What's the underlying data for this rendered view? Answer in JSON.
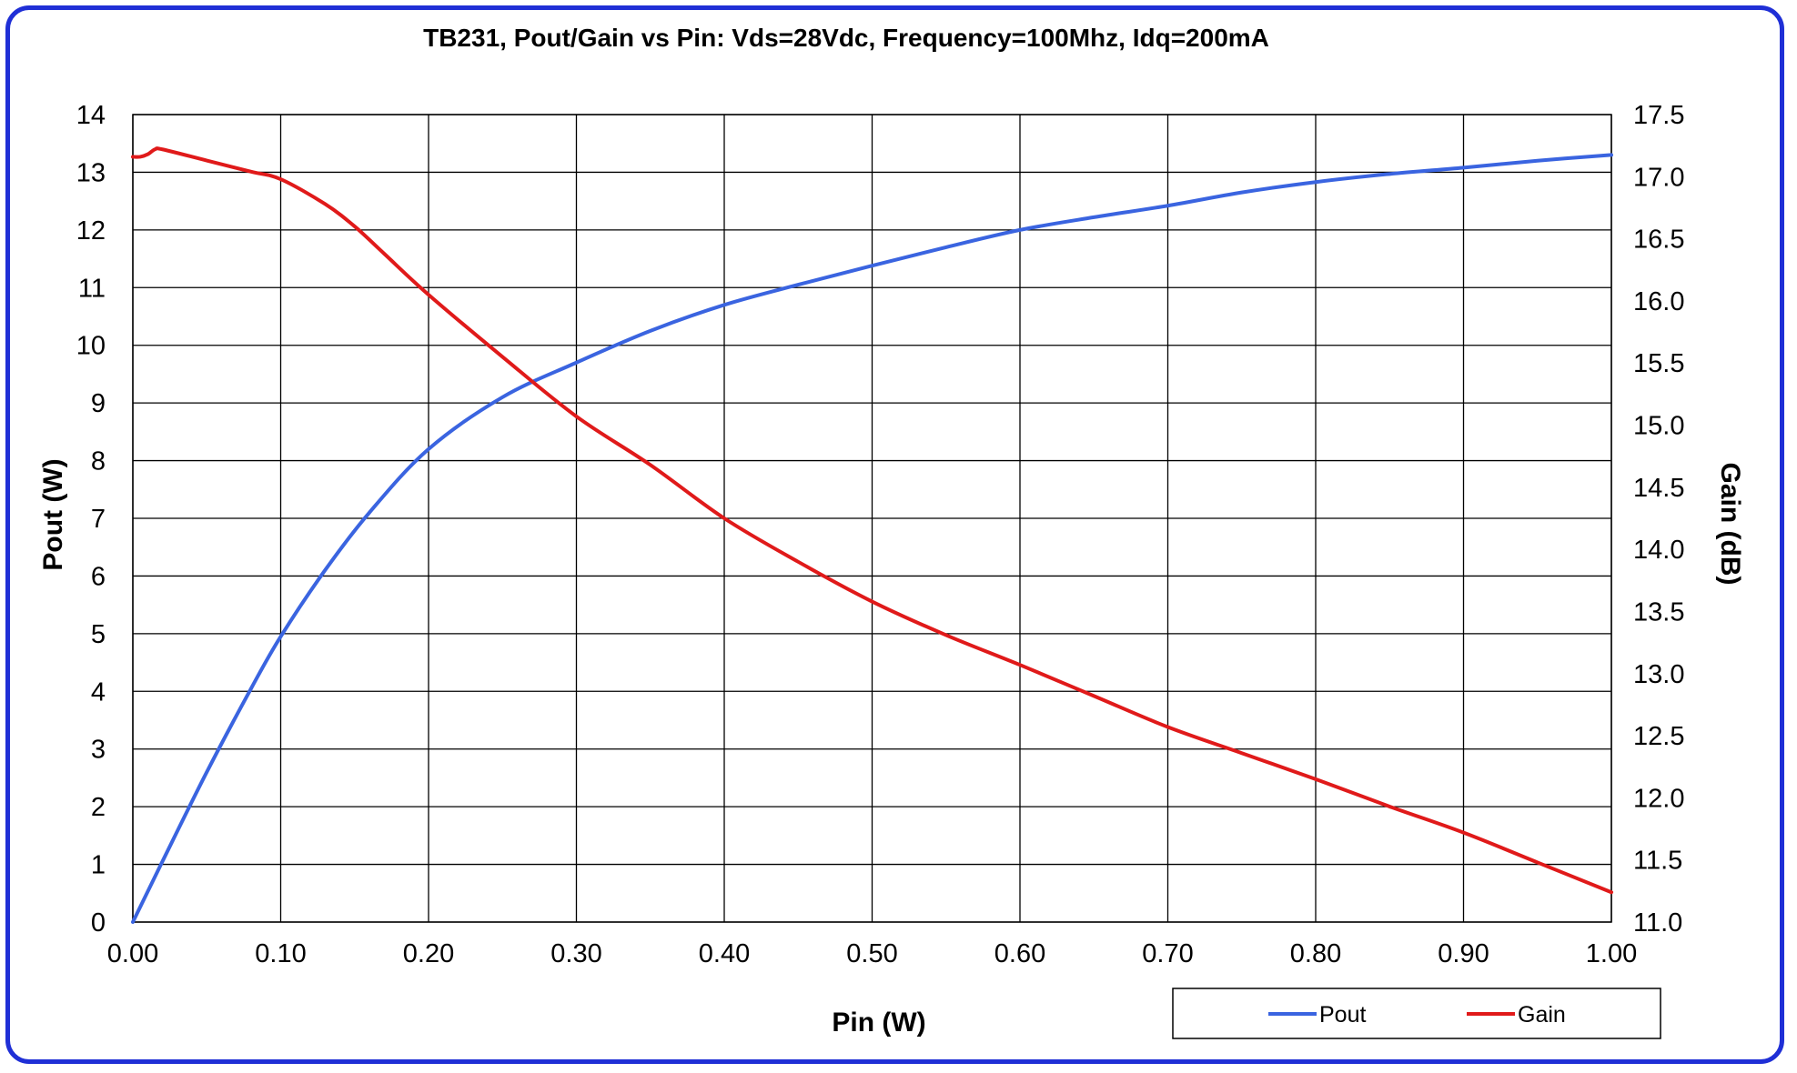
{
  "chart_data": {
    "type": "line",
    "title": "TB231, Pout/Gain vs Pin: Vds=28Vdc,  Frequency=100Mhz, Idq=200mA",
    "xlabel": "Pin (W)",
    "ylabel": "Pout (W)",
    "y2label": "Gain (dB)",
    "xlim": [
      0,
      1
    ],
    "ylim": [
      0,
      14
    ],
    "y2lim": [
      11,
      17.5
    ],
    "grid": true,
    "legend_position": "bottom-right",
    "x_ticks": [
      "0.00",
      "0.10",
      "0.20",
      "0.30",
      "0.40",
      "0.50",
      "0.60",
      "0.70",
      "0.80",
      "0.90",
      "1.00"
    ],
    "y_ticks": [
      "0",
      "1",
      "2",
      "3",
      "4",
      "5",
      "6",
      "7",
      "8",
      "9",
      "10",
      "11",
      "12",
      "13",
      "14"
    ],
    "y2_ticks": [
      "11.0",
      "11.5",
      "12.0",
      "12.5",
      "13.0",
      "13.5",
      "14.0",
      "14.5",
      "15.0",
      "15.5",
      "16.0",
      "16.5",
      "17.0",
      "17.5"
    ],
    "series": [
      {
        "name": "Pout",
        "axis": "left",
        "color": "#3a64e0",
        "x": [
          0.0,
          0.02,
          0.05,
          0.08,
          0.1,
          0.13,
          0.16,
          0.2,
          0.25,
          0.3,
          0.35,
          0.4,
          0.45,
          0.5,
          0.55,
          0.6,
          0.65,
          0.7,
          0.75,
          0.8,
          0.85,
          0.9,
          0.95,
          1.0
        ],
        "values": [
          0.0,
          1.05,
          2.6,
          4.05,
          4.95,
          6.1,
          7.1,
          8.2,
          9.1,
          9.7,
          10.25,
          10.7,
          11.05,
          11.38,
          11.7,
          12.0,
          12.22,
          12.42,
          12.65,
          12.83,
          12.97,
          13.08,
          13.2,
          13.3
        ]
      },
      {
        "name": "Gain",
        "axis": "right",
        "color": "#e01a1a",
        "x": [
          0.0,
          0.005,
          0.01,
          0.015,
          0.02,
          0.05,
          0.08,
          0.1,
          0.13,
          0.15,
          0.17,
          0.2,
          0.25,
          0.3,
          0.35,
          0.4,
          0.45,
          0.5,
          0.55,
          0.6,
          0.65,
          0.7,
          0.75,
          0.8,
          0.85,
          0.9,
          0.95,
          1.0
        ],
        "values": [
          17.16,
          17.16,
          17.18,
          17.22,
          17.22,
          17.13,
          17.04,
          16.98,
          16.78,
          16.6,
          16.38,
          16.05,
          15.55,
          15.07,
          14.68,
          14.25,
          13.9,
          13.58,
          13.31,
          13.07,
          12.82,
          12.57,
          12.36,
          12.15,
          11.93,
          11.72,
          11.48,
          11.24
        ]
      }
    ]
  }
}
